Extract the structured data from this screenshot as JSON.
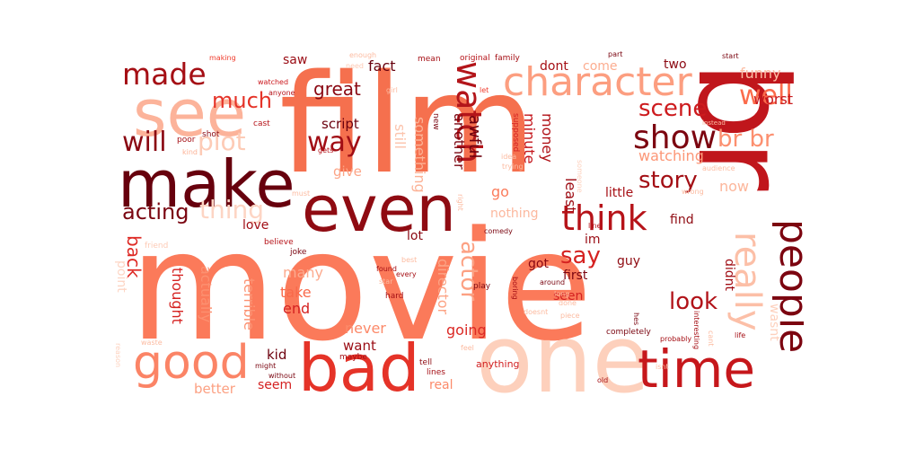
{
  "wordcloud": {
    "words": [
      {
        "text": "movie",
        "color": "#fb7a5a"
      },
      {
        "text": "film",
        "color": "#f5704e"
      },
      {
        "text": "br",
        "color": "#c0161c"
      },
      {
        "text": "one",
        "color": "#fdd0bc"
      },
      {
        "text": "make",
        "color": "#67000d"
      },
      {
        "text": "see",
        "color": "#fcb39a"
      },
      {
        "text": "even",
        "color": "#8f0b12"
      },
      {
        "text": "bad",
        "color": "#e53328"
      },
      {
        "text": "time",
        "color": "#c6171b"
      },
      {
        "text": "good",
        "color": "#fb8466"
      },
      {
        "text": "character",
        "color": "#fc9e80"
      },
      {
        "text": "made",
        "color": "#a50f15"
      },
      {
        "text": "people",
        "color": "#7c0510"
      },
      {
        "text": "really",
        "color": "#fcbfa7"
      },
      {
        "text": "watch",
        "color": "#b3151a"
      },
      {
        "text": "think",
        "color": "#b61319"
      },
      {
        "text": "show",
        "color": "#7c0510"
      },
      {
        "text": "well",
        "color": "#fb6b4b"
      },
      {
        "text": "much",
        "color": "#e53328"
      },
      {
        "text": "plot",
        "color": "#fdcbb6"
      },
      {
        "text": "story",
        "color": "#a30f15"
      },
      {
        "text": "way",
        "color": "#a10e15"
      },
      {
        "text": "will",
        "color": "#8a0812"
      },
      {
        "text": "scene",
        "color": "#cd1b1e"
      },
      {
        "text": "br br",
        "color": "#fc8f6f"
      },
      {
        "text": "acting",
        "color": "#7a0510"
      },
      {
        "text": "thing",
        "color": "#fdd5c4"
      },
      {
        "text": "actor",
        "color": "#fca183"
      },
      {
        "text": "say",
        "color": "#d52221"
      },
      {
        "text": "look",
        "color": "#b11218"
      },
      {
        "text": "great",
        "color": "#8a0812"
      },
      {
        "text": "back",
        "color": "#de2a25"
      },
      {
        "text": "funny",
        "color": "#fcbea5"
      },
      {
        "text": "worst",
        "color": "#c8181c"
      },
      {
        "text": "fact",
        "color": "#67000d"
      },
      {
        "text": "script",
        "color": "#6b010e"
      },
      {
        "text": "dont",
        "color": "#a50f15"
      },
      {
        "text": "come",
        "color": "#fcad90"
      },
      {
        "text": "two",
        "color": "#8c0912"
      },
      {
        "text": "saw",
        "color": "#9a0c14"
      },
      {
        "text": "awful",
        "color": "#6d010e"
      },
      {
        "text": "another",
        "color": "#7a0510"
      },
      {
        "text": "money",
        "color": "#b01217"
      },
      {
        "text": "minute",
        "color": "#c4161c"
      },
      {
        "text": "something",
        "color": "#fcb296"
      },
      {
        "text": "still",
        "color": "#fcc4ad"
      },
      {
        "text": "give",
        "color": "#fca486"
      },
      {
        "text": "least",
        "color": "#9e0d14"
      },
      {
        "text": "watching",
        "color": "#fc9777"
      },
      {
        "text": "now",
        "color": "#fcb69b"
      },
      {
        "text": "go",
        "color": "#fb7c5c"
      },
      {
        "text": "little",
        "color": "#a60f15"
      },
      {
        "text": "nothing",
        "color": "#fcb89e"
      },
      {
        "text": "find",
        "color": "#8f0b12"
      },
      {
        "text": "love",
        "color": "#a10e15"
      },
      {
        "text": "lot",
        "color": "#8a0812"
      },
      {
        "text": "im",
        "color": "#9a0c14"
      },
      {
        "text": "got",
        "color": "#8a0812"
      },
      {
        "text": "first",
        "color": "#7c0510"
      },
      {
        "text": "guy",
        "color": "#8f0b12"
      },
      {
        "text": "seen",
        "color": "#d42121"
      },
      {
        "text": "didnt",
        "color": "#a10e15"
      },
      {
        "text": "director",
        "color": "#fca486"
      },
      {
        "text": "thought",
        "color": "#d52221"
      },
      {
        "text": "actually",
        "color": "#fc9070"
      },
      {
        "text": "many",
        "color": "#fcab8f"
      },
      {
        "text": "take",
        "color": "#f9694a"
      },
      {
        "text": "end",
        "color": "#d52221"
      },
      {
        "text": "terrible",
        "color": "#fc9272"
      },
      {
        "text": "point",
        "color": "#fdd5c4"
      },
      {
        "text": "never",
        "color": "#fc8a6a"
      },
      {
        "text": "going",
        "color": "#db2824"
      },
      {
        "text": "want",
        "color": "#9a0c14"
      },
      {
        "text": "kid",
        "color": "#6d010e"
      },
      {
        "text": "seem",
        "color": "#d42121"
      },
      {
        "text": "real",
        "color": "#fc8b6b"
      },
      {
        "text": "better",
        "color": "#fca082"
      },
      {
        "text": "lines",
        "color": "#fdd4c2"
      },
      {
        "text": "tell",
        "color": "#a50f15"
      },
      {
        "text": "anything",
        "color": "#8f0b12"
      },
      {
        "text": "joke",
        "color": "#d11e1f"
      },
      {
        "text": "friend",
        "color": "#7a0510"
      },
      {
        "text": "believe",
        "color": "#fdcab5"
      },
      {
        "text": "poor",
        "color": "#b61319"
      },
      {
        "text": "shot",
        "color": "#a50f15"
      },
      {
        "text": "cast",
        "color": "#8a0812"
      },
      {
        "text": "kind",
        "color": "#b61319"
      },
      {
        "text": "gets",
        "color": "#fcb296"
      },
      {
        "text": "must",
        "color": "#b61319"
      },
      {
        "text": "making",
        "color": "#fcbba1"
      },
      {
        "text": "watched",
        "color": "#ef3b2c"
      },
      {
        "text": "anyone",
        "color": "#cb181d"
      },
      {
        "text": "enough",
        "color": "#b61319"
      },
      {
        "text": "need",
        "color": "#fcbba1"
      },
      {
        "text": "mean",
        "color": "#fdcab5"
      },
      {
        "text": "original",
        "color": "#a50f15"
      },
      {
        "text": "family",
        "color": "#b61319"
      },
      {
        "text": "girl",
        "color": "#a50f15"
      },
      {
        "text": "let",
        "color": "#fcbba1"
      },
      {
        "text": "part",
        "color": "#ef3b2c"
      },
      {
        "text": "start",
        "color": "#7a0510"
      },
      {
        "text": "new",
        "color": "#7a0510"
      },
      {
        "text": "supposed",
        "color": "#7a0510"
      },
      {
        "text": "idea",
        "color": "#d42121"
      },
      {
        "text": "trying",
        "color": "#fcbba1"
      },
      {
        "text": "instead",
        "color": "#fcbba1"
      },
      {
        "text": "someone",
        "color": "#fcbba1"
      },
      {
        "text": "audience",
        "color": "#fdd0bc"
      },
      {
        "text": "wrong",
        "color": "#fcbba1"
      },
      {
        "text": "right",
        "color": "#fcbba1"
      },
      {
        "text": "comedy",
        "color": "#fcbba1"
      },
      {
        "text": "line",
        "color": "#7a0510"
      },
      {
        "text": "best",
        "color": "#b61319"
      },
      {
        "text": "every",
        "color": "#fcbba1"
      },
      {
        "text": "found",
        "color": "#a50f15"
      },
      {
        "text": "star",
        "color": "#a50f15"
      },
      {
        "text": "hard",
        "color": "#fcbba1"
      },
      {
        "text": "play",
        "color": "#a50f15"
      },
      {
        "text": "boring",
        "color": "#7a0510"
      },
      {
        "text": "around",
        "color": "#a50f15"
      },
      {
        "text": "done",
        "color": "#7a0510"
      },
      {
        "text": "long",
        "color": "#fcbba1"
      },
      {
        "text": "doesnt",
        "color": "#fcbba1"
      },
      {
        "text": "piece",
        "color": "#fcbba1"
      },
      {
        "text": "maybe",
        "color": "#fcbba1"
      },
      {
        "text": "feel",
        "color": "#a50f15"
      },
      {
        "text": "might",
        "color": "#fcbba1"
      },
      {
        "text": "without",
        "color": "#7a0510"
      },
      {
        "text": "waste",
        "color": "#7a0510"
      },
      {
        "text": "reason",
        "color": "#fcbba1"
      },
      {
        "text": "completely",
        "color": "#fdd0bc"
      },
      {
        "text": "hes",
        "color": "#7a0510"
      },
      {
        "text": "interesting",
        "color": "#7a0510"
      },
      {
        "text": "probably",
        "color": "#a50f15"
      },
      {
        "text": "isnt",
        "color": "#a50f15"
      },
      {
        "text": "life",
        "color": "#fcbba1"
      },
      {
        "text": "cant",
        "color": "#a50f15"
      },
      {
        "text": "old",
        "color": "#fcbba1"
      },
      {
        "text": "wasnt",
        "color": "#a50f15"
      },
      {
        "text": "thats",
        "color": "#fdd0bc"
      }
    ]
  }
}
